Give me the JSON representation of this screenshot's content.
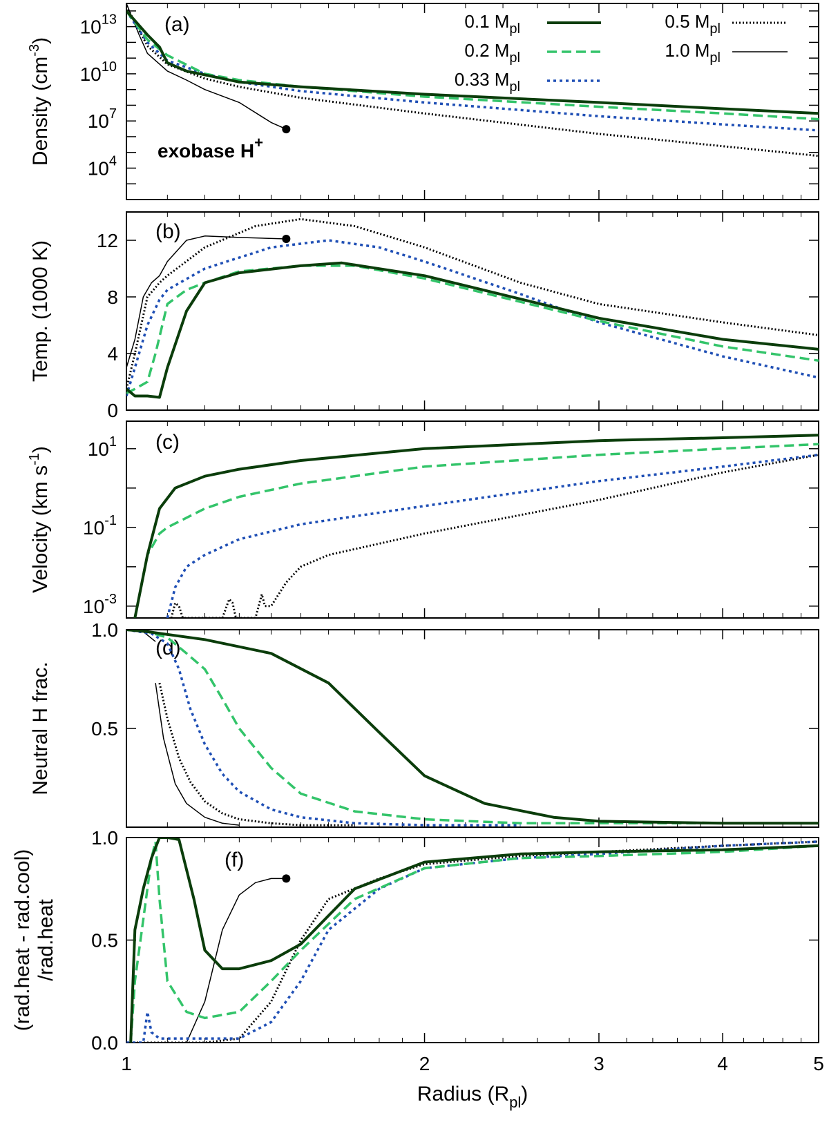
{
  "figure": {
    "xlabel": "Radius (R",
    "xlabel_sub": "pl",
    "xlabel_tail": ")",
    "x_ticks": [
      "1",
      "2",
      "3",
      "4",
      "5"
    ]
  },
  "legend": {
    "entries": [
      {
        "label": "0.1 M",
        "sub": "pl",
        "color": "#0b3d0b",
        "style": "thick-solid"
      },
      {
        "label": "0.2 M",
        "sub": "pl",
        "color": "#33c46a",
        "style": "dashed"
      },
      {
        "label": "0.33 M",
        "sub": "pl",
        "color": "#1f4fb5",
        "style": "dotted"
      },
      {
        "label": "0.5 M",
        "sub": "pl",
        "color": "#000000",
        "style": "fine-dotted"
      },
      {
        "label": "1.0 M",
        "sub": "pl",
        "color": "#000000",
        "style": "thin-solid"
      }
    ]
  },
  "chart_data": [
    {
      "type": "line",
      "panel": "(a)",
      "ylabel": "Density (cm",
      "ylabel_sup": "-3",
      "ylabel_tail": ")",
      "yscale": "log",
      "xscale": "log",
      "xlim": [
        1,
        5
      ],
      "ylim": [
        100,
        300000000000000
      ],
      "y_ticks": [
        {
          "base": "10",
          "exp": "13",
          "v": 10000000000000.0
        },
        {
          "base": "10",
          "exp": "10",
          "v": 10000000000.0
        },
        {
          "base": "10",
          "exp": "7",
          "v": 10000000.0
        },
        {
          "base": "10",
          "exp": "4",
          "v": 10000.0
        }
      ],
      "annotation": {
        "text": "exobase H",
        "sup": "+",
        "x": 1.45,
        "y": 3000000
      },
      "series": [
        {
          "name": "0.1 Mpl",
          "x": [
            1.0,
            1.05,
            1.08,
            1.1,
            1.15,
            1.3,
            1.5,
            2,
            3,
            4,
            5
          ],
          "y": [
            100000000000000.0,
            3000000000000.0,
            500000000000.0,
            50000000000.0,
            15000000000.0,
            3000000000.0,
            1500000000.0,
            500000000.0,
            150000000.0,
            60000000.0,
            30000000.0
          ]
        },
        {
          "name": "0.2 Mpl",
          "x": [
            1.0,
            1.05,
            1.1,
            1.2,
            1.3,
            1.5,
            2,
            3,
            4,
            5
          ],
          "y": [
            100000000000000.0,
            1500000000000.0,
            150000000000.0,
            10000000000.0,
            4000000000.0,
            1500000000.0,
            350000000.0,
            80000000.0,
            30000000.0,
            13000000.0
          ]
        },
        {
          "name": "0.33 Mpl",
          "x": [
            1.0,
            1.05,
            1.1,
            1.2,
            1.3,
            1.5,
            2,
            3,
            4,
            5
          ],
          "y": [
            100000000000000.0,
            1000000000000.0,
            70000000000.0,
            10000000000.0,
            3000000000.0,
            800000000.0,
            150000000.0,
            20000000.0,
            6000000.0,
            2500000.0
          ]
        },
        {
          "name": "0.5 Mpl",
          "x": [
            1.0,
            1.05,
            1.1,
            1.2,
            1.3,
            1.5,
            2,
            3,
            4,
            5
          ],
          "y": [
            200000000000000.0,
            600000000000.0,
            40000000000.0,
            5000000000.0,
            1500000000.0,
            300000000.0,
            30000000.0,
            1500000.0,
            250000.0,
            60000.0
          ]
        },
        {
          "name": "1.0 Mpl",
          "x": [
            1.0,
            1.03,
            1.05,
            1.1,
            1.15,
            1.2,
            1.3,
            1.4,
            1.45
          ],
          "y": [
            300000000000000.0,
            3000000000000.0,
            200000000000.0,
            15000000000.0,
            4000000000.0,
            1000000000.0,
            150000000.0,
            8000000.0,
            3000000.0
          ]
        }
      ]
    },
    {
      "type": "line",
      "panel": "(b)",
      "ylabel": "Temp. (1000 K)",
      "xscale": "log",
      "xlim": [
        1,
        5
      ],
      "ylim": [
        0,
        14
      ],
      "y_ticks": [
        "0",
        "4",
        "8",
        "12"
      ],
      "series": [
        {
          "name": "0.1 Mpl",
          "x": [
            1.0,
            1.02,
            1.05,
            1.08,
            1.1,
            1.15,
            1.2,
            1.3,
            1.5,
            1.65,
            2,
            3,
            4,
            5
          ],
          "y": [
            1.5,
            1.0,
            1.0,
            0.9,
            3.0,
            7.0,
            9.0,
            9.7,
            10.2,
            10.4,
            9.5,
            6.5,
            5.0,
            4.3
          ]
        },
        {
          "name": "0.2 Mpl",
          "x": [
            1.0,
            1.02,
            1.05,
            1.07,
            1.1,
            1.15,
            1.2,
            1.3,
            1.5,
            1.7,
            2,
            3,
            4,
            5
          ],
          "y": [
            1.2,
            1.5,
            2.0,
            4.0,
            7.5,
            8.5,
            9.0,
            9.8,
            10.2,
            10.2,
            9.3,
            6.3,
            4.5,
            3.5
          ]
        },
        {
          "name": "0.33 Mpl",
          "x": [
            1.0,
            1.02,
            1.05,
            1.08,
            1.1,
            1.2,
            1.4,
            1.6,
            1.8,
            2,
            2.5,
            3,
            4,
            5
          ],
          "y": [
            1.0,
            3.0,
            6.0,
            7.8,
            8.5,
            10.0,
            11.5,
            12.0,
            11.5,
            10.5,
            8.2,
            6.2,
            3.8,
            2.3
          ]
        },
        {
          "name": "0.5 Mpl",
          "x": [
            1.0,
            1.02,
            1.05,
            1.08,
            1.1,
            1.2,
            1.35,
            1.5,
            1.7,
            2,
            2.5,
            3,
            4,
            5
          ],
          "y": [
            1.5,
            4.0,
            8.0,
            9.0,
            9.5,
            11.5,
            13.0,
            13.5,
            13.0,
            11.5,
            9.0,
            7.5,
            6.2,
            5.3
          ]
        },
        {
          "name": "1.0 Mpl",
          "x": [
            1.0,
            1.02,
            1.04,
            1.06,
            1.08,
            1.1,
            1.15,
            1.2,
            1.3,
            1.45
          ],
          "y": [
            3.0,
            5.0,
            8.0,
            9.0,
            9.5,
            10.5,
            12.0,
            12.3,
            12.2,
            12.1
          ]
        }
      ]
    },
    {
      "type": "line",
      "panel": "(c)",
      "ylabel": "Velocity (km s",
      "ylabel_sup": "-1",
      "ylabel_tail": ")",
      "yscale": "log",
      "xscale": "log",
      "xlim": [
        1,
        5
      ],
      "ylim": [
        0.0005,
        50
      ],
      "y_ticks": [
        {
          "base": "10",
          "exp": "1",
          "v": 10
        },
        {
          "base": "10",
          "exp": "-1",
          "v": 0.1
        },
        {
          "base": "10",
          "exp": "-3",
          "v": 0.001
        }
      ],
      "series": [
        {
          "name": "0.1 Mpl",
          "x": [
            1.02,
            1.05,
            1.08,
            1.12,
            1.2,
            1.3,
            1.5,
            2,
            3,
            4,
            5
          ],
          "y": [
            0.0005,
            0.02,
            0.3,
            1.0,
            2.0,
            3.0,
            5.0,
            10.0,
            16.0,
            19.0,
            22.0
          ]
        },
        {
          "name": "0.2 Mpl",
          "x": [
            1.02,
            1.05,
            1.08,
            1.1,
            1.2,
            1.3,
            1.5,
            2,
            3,
            4,
            5
          ],
          "y": [
            0.0005,
            0.02,
            0.07,
            0.1,
            0.3,
            0.6,
            1.3,
            3.5,
            7.0,
            10.0,
            13.0
          ]
        },
        {
          "name": "0.33 Mpl",
          "x": [
            1.1,
            1.12,
            1.15,
            1.2,
            1.3,
            1.5,
            2,
            3,
            4,
            5
          ],
          "y": [
            0.0005,
            0.003,
            0.01,
            0.02,
            0.05,
            0.12,
            0.35,
            1.5,
            3.5,
            7.0
          ]
        },
        {
          "name": "0.5 Mpl",
          "x": [
            1.11,
            1.12,
            1.13,
            1.14,
            1.25,
            1.27,
            1.28,
            1.29,
            1.35,
            1.37,
            1.38,
            1.4,
            1.45,
            1.5,
            1.6,
            2,
            3,
            4,
            5
          ],
          "y": [
            0.0005,
            0.0012,
            0.001,
            0.0005,
            0.0005,
            0.0015,
            0.0012,
            0.0005,
            0.0005,
            0.002,
            0.001,
            0.001,
            0.004,
            0.01,
            0.02,
            0.07,
            0.5,
            2.5,
            7.0
          ]
        }
      ]
    },
    {
      "type": "line",
      "panel": "(d)",
      "ylabel": "Neutral H frac.",
      "xscale": "log",
      "xlim": [
        1,
        5
      ],
      "ylim": [
        0,
        1
      ],
      "y_ticks": [
        "0.5",
        "1.0"
      ],
      "series": [
        {
          "name": "0.1 Mpl",
          "x": [
            1.0,
            1.05,
            1.2,
            1.4,
            1.6,
            1.8,
            2,
            2.3,
            2.7,
            3,
            4,
            5
          ],
          "y": [
            1.0,
            0.99,
            0.95,
            0.88,
            0.73,
            0.48,
            0.26,
            0.12,
            0.05,
            0.03,
            0.02,
            0.02
          ]
        },
        {
          "name": "0.2 Mpl",
          "x": [
            1.0,
            1.05,
            1.1,
            1.15,
            1.2,
            1.25,
            1.3,
            1.4,
            1.5,
            1.7,
            2,
            2.5,
            3,
            4,
            5
          ],
          "y": [
            1.0,
            0.99,
            0.96,
            0.88,
            0.8,
            0.65,
            0.5,
            0.3,
            0.17,
            0.08,
            0.04,
            0.02,
            0.02,
            0.02,
            0.02
          ]
        },
        {
          "name": "0.33 Mpl",
          "x": [
            1.0,
            1.06,
            1.1,
            1.13,
            1.16,
            1.2,
            1.25,
            1.3,
            1.4,
            1.5,
            1.7,
            2,
            2.5
          ],
          "y": [
            1.0,
            0.98,
            0.93,
            0.8,
            0.6,
            0.42,
            0.27,
            0.18,
            0.09,
            0.05,
            0.02,
            0.01,
            0.01
          ]
        },
        {
          "name": "0.5 Mpl",
          "x": [
            1.08,
            1.1,
            1.13,
            1.16,
            1.2,
            1.25,
            1.3,
            1.4,
            1.5,
            1.7
          ],
          "y": [
            0.73,
            0.55,
            0.35,
            0.23,
            0.13,
            0.07,
            0.04,
            0.02,
            0.01,
            0.01
          ]
        },
        {
          "name": "1.0 Mpl",
          "x": [
            1.0,
            1.04,
            1.07
          ],
          "y": [
            1.0,
            0.99,
            0.94
          ],
          "x2": [
            1.07,
            1.09,
            1.12,
            1.15,
            1.2,
            1.25,
            1.3
          ],
          "y2": [
            0.73,
            0.45,
            0.22,
            0.12,
            0.05,
            0.02,
            0.01
          ]
        }
      ]
    },
    {
      "type": "line",
      "panel": "(f)",
      "ylabel": "(rad.heat - rad.cool)",
      "ylabel2": "/rad.heat",
      "xscale": "log",
      "xlim": [
        1,
        5
      ],
      "ylim": [
        0,
        1
      ],
      "y_ticks": [
        "0.0",
        "0.5",
        "1.0"
      ],
      "series": [
        {
          "name": "0.1 Mpl",
          "x": [
            1.01,
            1.02,
            1.04,
            1.06,
            1.08,
            1.1,
            1.13,
            1.17,
            1.2,
            1.25,
            1.3,
            1.4,
            1.5,
            1.7,
            2,
            2.5,
            3,
            4,
            5
          ],
          "y": [
            0.0,
            0.55,
            0.75,
            0.9,
            1.0,
            1.0,
            0.99,
            0.7,
            0.45,
            0.36,
            0.36,
            0.4,
            0.48,
            0.75,
            0.88,
            0.92,
            0.93,
            0.94,
            0.96
          ]
        },
        {
          "name": "0.2 Mpl",
          "x": [
            1.01,
            1.02,
            1.04,
            1.06,
            1.07,
            1.08,
            1.1,
            1.15,
            1.2,
            1.3,
            1.4,
            1.5,
            1.7,
            2,
            2.5,
            3,
            4,
            5
          ],
          "y": [
            0.0,
            0.3,
            0.6,
            0.9,
            0.98,
            0.7,
            0.3,
            0.15,
            0.12,
            0.15,
            0.3,
            0.45,
            0.7,
            0.85,
            0.9,
            0.91,
            0.93,
            0.96
          ]
        },
        {
          "name": "0.33 Mpl",
          "x": [
            1.0,
            1.04,
            1.05,
            1.06,
            1.08,
            1.1,
            1.3,
            1.4,
            1.5,
            1.6,
            1.8,
            2,
            2.5,
            3,
            4,
            5
          ],
          "y": [
            0.0,
            0.0,
            0.15,
            0.05,
            0.02,
            0.02,
            0.02,
            0.1,
            0.3,
            0.55,
            0.75,
            0.85,
            0.9,
            0.92,
            0.96,
            0.98
          ]
        },
        {
          "name": "0.5 Mpl",
          "x": [
            1.0,
            1.2,
            1.3,
            1.4,
            1.5,
            1.6,
            1.8,
            2,
            2.5,
            3,
            4,
            5
          ],
          "y": [
            0.0,
            0.0,
            0.02,
            0.2,
            0.5,
            0.7,
            0.8,
            0.87,
            0.91,
            0.93,
            0.96,
            0.98
          ]
        },
        {
          "name": "1.0 Mpl",
          "x": [
            1.0,
            1.15,
            1.2,
            1.25,
            1.3,
            1.35,
            1.4,
            1.45
          ],
          "y": [
            0.0,
            0.0,
            0.2,
            0.55,
            0.72,
            0.78,
            0.8,
            0.8
          ]
        }
      ]
    }
  ]
}
